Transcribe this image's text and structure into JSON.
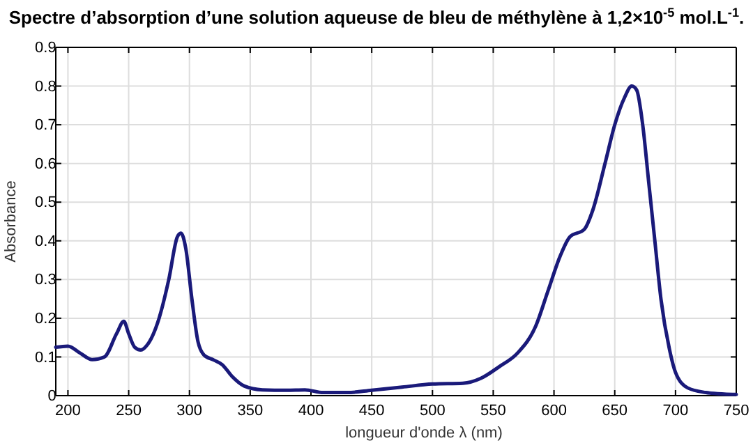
{
  "chart_data": {
    "type": "line",
    "title": "Spectre d’absorption d’une solution aqueuse de bleu de méthylène à 1,2×10$^{-5}$ mol.L$^{-1}$.",
    "xlabel": "longueur d'onde λ (nm)",
    "ylabel": "Absorbance",
    "x": [
      190,
      200,
      210,
      220,
      230,
      240,
      246,
      250,
      255,
      260,
      265,
      275,
      283,
      290,
      293,
      297,
      302,
      307,
      312,
      320,
      327,
      335,
      345,
      360,
      380,
      395,
      410,
      430,
      450,
      475,
      500,
      525,
      540,
      555,
      570,
      585,
      595,
      605,
      613,
      625,
      632,
      642,
      650,
      658,
      664,
      668,
      673,
      678,
      683,
      688,
      695,
      700,
      710,
      725,
      740,
      750
    ],
    "series": [
      {
        "color": "#1a1a7a",
        "values": [
          0.125,
          0.128,
          0.11,
          0.093,
          0.1,
          0.16,
          0.192,
          0.16,
          0.125,
          0.118,
          0.13,
          0.2,
          0.3,
          0.41,
          0.42,
          0.38,
          0.25,
          0.14,
          0.105,
          0.092,
          0.08,
          0.05,
          0.025,
          0.015,
          0.014,
          0.015,
          0.008,
          0.008,
          0.014,
          0.022,
          0.03,
          0.032,
          0.045,
          0.075,
          0.11,
          0.18,
          0.27,
          0.36,
          0.41,
          0.43,
          0.48,
          0.6,
          0.7,
          0.77,
          0.8,
          0.79,
          0.7,
          0.55,
          0.4,
          0.25,
          0.12,
          0.06,
          0.02,
          0.008,
          0.004,
          0.003
        ]
      }
    ],
    "xlim": [
      190,
      750
    ],
    "xticks": [
      200,
      250,
      300,
      350,
      400,
      450,
      500,
      550,
      600,
      650,
      700,
      750
    ],
    "ylim": [
      0,
      0.9
    ],
    "yticks": [
      0,
      0.1,
      0.2,
      0.3,
      0.4,
      0.5,
      0.6,
      0.7,
      0.8,
      0.9
    ],
    "grid": true,
    "line_style": "solid",
    "marker": "none"
  }
}
